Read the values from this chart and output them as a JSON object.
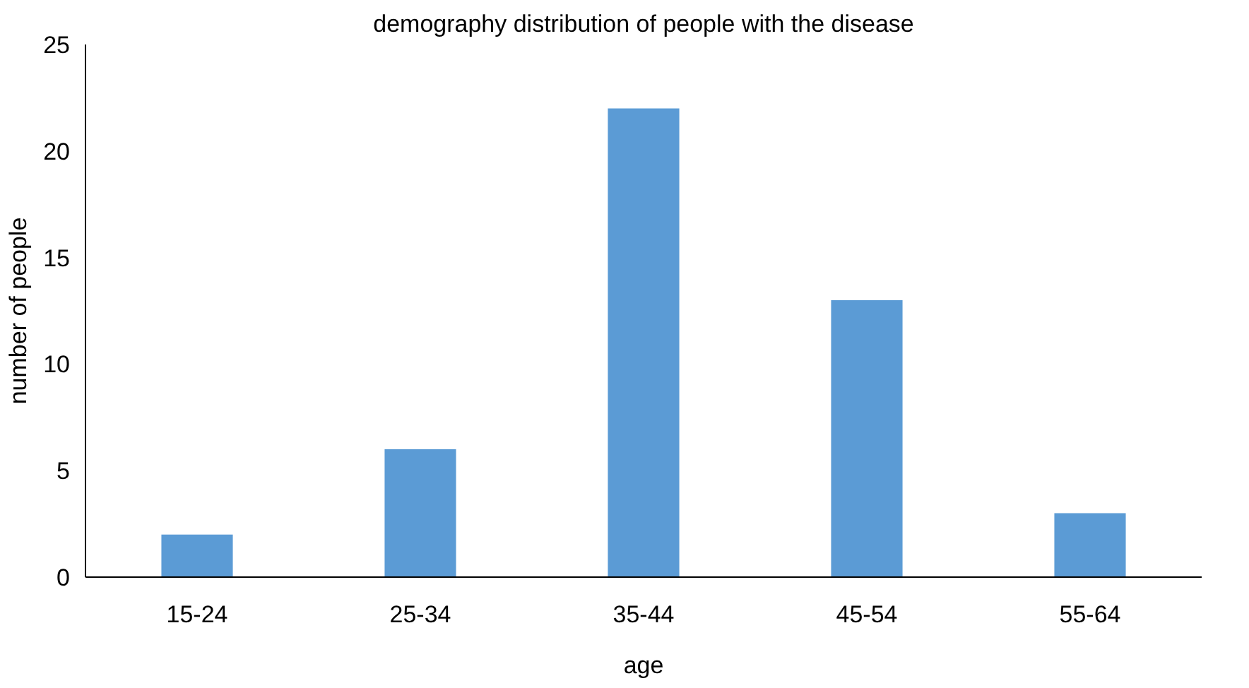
{
  "chart_data": {
    "type": "bar",
    "title": "demography distribution of people with the disease",
    "xlabel": "age",
    "ylabel": "number of people",
    "categories": [
      "15-24",
      "25-34",
      "35-44",
      "45-54",
      "55-64"
    ],
    "values": [
      2,
      6,
      22,
      13,
      3
    ],
    "color": "#5b9bd5",
    "ylim": [
      0,
      25
    ],
    "yticks": [
      0,
      5,
      10,
      15,
      20,
      25
    ],
    "grid": false
  }
}
